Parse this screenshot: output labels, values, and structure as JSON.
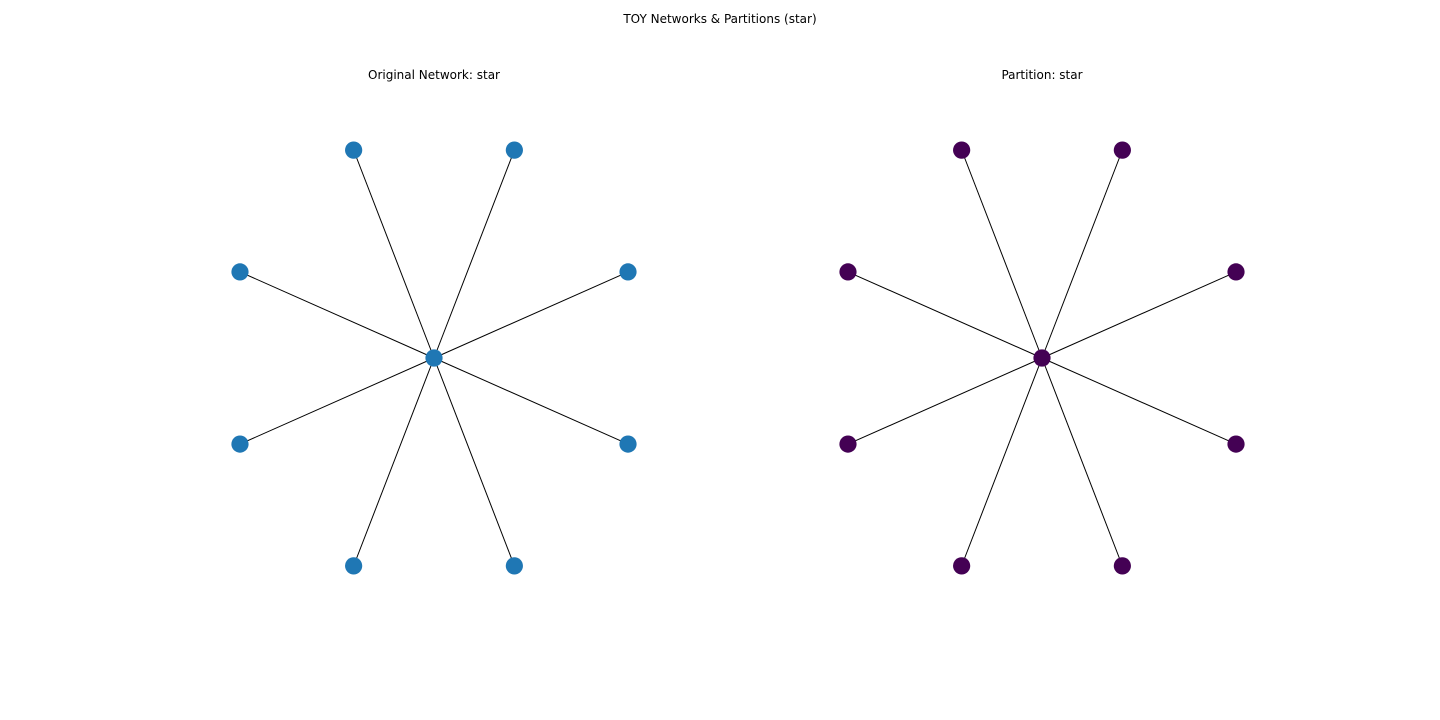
{
  "figure": {
    "title": "TOY Networks & Partitions (star)"
  },
  "panels": [
    {
      "title": "Original Network: star",
      "node_color": "#1f77b4",
      "center_node": "hub",
      "nodes": [
        "hub",
        "n1",
        "n2",
        "n3",
        "n4",
        "n5",
        "n6",
        "n7",
        "n8"
      ],
      "edges": [
        [
          "hub",
          "n1"
        ],
        [
          "hub",
          "n2"
        ],
        [
          "hub",
          "n3"
        ],
        [
          "hub",
          "n4"
        ],
        [
          "hub",
          "n5"
        ],
        [
          "hub",
          "n6"
        ],
        [
          "hub",
          "n7"
        ],
        [
          "hub",
          "n8"
        ]
      ]
    },
    {
      "title": "Partition: star",
      "node_color": "#440154",
      "center_node": "hub",
      "nodes": [
        "hub",
        "n1",
        "n2",
        "n3",
        "n4",
        "n5",
        "n6",
        "n7",
        "n8"
      ],
      "edges": [
        [
          "hub",
          "n1"
        ],
        [
          "hub",
          "n2"
        ],
        [
          "hub",
          "n3"
        ],
        [
          "hub",
          "n4"
        ],
        [
          "hub",
          "n5"
        ],
        [
          "hub",
          "n6"
        ],
        [
          "hub",
          "n7"
        ],
        [
          "hub",
          "n8"
        ]
      ]
    }
  ]
}
